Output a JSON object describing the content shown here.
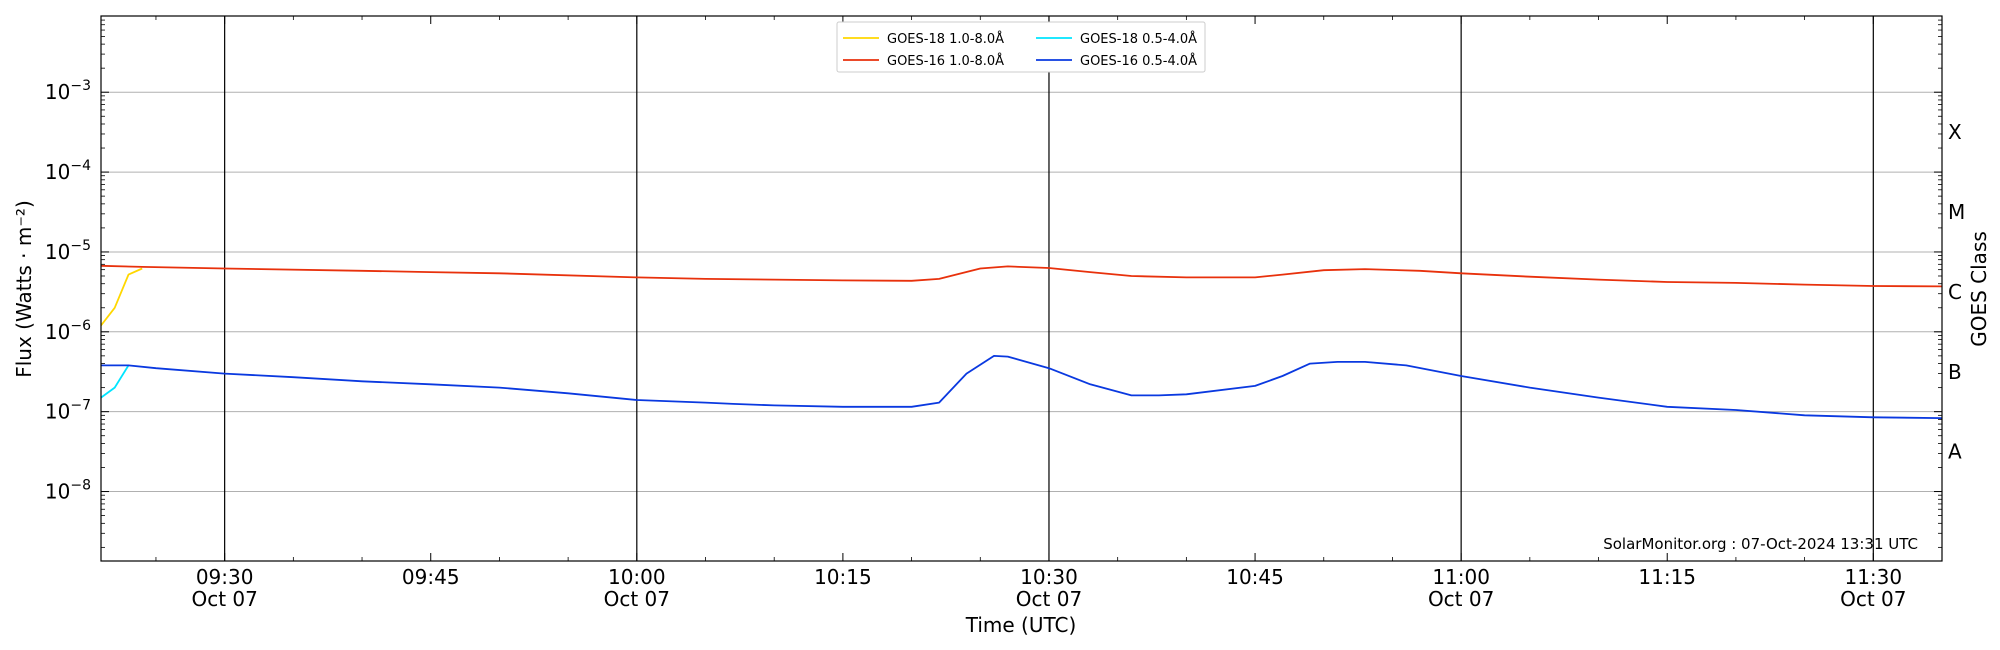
{
  "chart_data": {
    "type": "line",
    "xlabel": "Time (UTC)",
    "ylabel": "Flux (Watts · m⁻²)",
    "right_label": "GOES Class",
    "xlim": [
      "09:21",
      "11:35"
    ],
    "ylim": [
      1.35e-09,
      0.009
    ],
    "y_scale": "log",
    "x_ticks": [
      {
        "time": "09:30",
        "label": "09:30",
        "date": "Oct 07",
        "major": true
      },
      {
        "time": "09:45",
        "label": "09:45",
        "date": "",
        "major": false
      },
      {
        "time": "10:00",
        "label": "10:00",
        "date": "Oct 07",
        "major": true
      },
      {
        "time": "10:15",
        "label": "10:15",
        "date": "",
        "major": false
      },
      {
        "time": "10:30",
        "label": "10:30",
        "date": "Oct 07",
        "major": true
      },
      {
        "time": "10:45",
        "label": "10:45",
        "date": "",
        "major": false
      },
      {
        "time": "11:00",
        "label": "11:00",
        "date": "Oct 07",
        "major": true
      },
      {
        "time": "11:15",
        "label": "11:15",
        "date": "",
        "major": false
      },
      {
        "time": "11:30",
        "label": "11:30",
        "date": "Oct 07",
        "major": true
      }
    ],
    "y_ticks": [
      {
        "value": 1e-08,
        "base": "10",
        "exp": "−8"
      },
      {
        "value": 1e-07,
        "base": "10",
        "exp": "−7"
      },
      {
        "value": 1e-06,
        "base": "10",
        "exp": "−6"
      },
      {
        "value": 1e-05,
        "base": "10",
        "exp": "−5"
      },
      {
        "value": 0.0001,
        "base": "10",
        "exp": "−4"
      },
      {
        "value": 0.001,
        "base": "10",
        "exp": "−3"
      }
    ],
    "goes_classes": [
      {
        "label": "A",
        "value": 3.16e-08
      },
      {
        "label": "B",
        "value": 3.16e-07
      },
      {
        "label": "C",
        "value": 3.16e-06
      },
      {
        "label": "M",
        "value": 3.16e-05
      },
      {
        "label": "X",
        "value": 0.000316
      }
    ],
    "grid": true,
    "legend_position": "top-center",
    "annotation": "SolarMonitor.org : 07-Oct-2024 13:31 UTC",
    "series": [
      {
        "name": "GOES-18 1.0-8.0Å",
        "color": "#ffd700",
        "x": [
          "09:21",
          "09:22",
          "09:23",
          "09:24"
        ],
        "y": [
          1.2e-06,
          2e-06,
          5.2e-06,
          6.2e-06
        ]
      },
      {
        "name": "GOES-18 0.5-4.0Å",
        "color": "#00e5ff",
        "x": [
          "09:21",
          "09:22",
          "09:23"
        ],
        "y": [
          1.5e-07,
          2e-07,
          3.8e-07
        ]
      },
      {
        "name": "GOES-16 1.0-8.0Å",
        "color": "#e8310c",
        "x": [
          "09:21",
          "09:24",
          "09:30",
          "09:40",
          "09:45",
          "09:50",
          "10:00",
          "10:05",
          "10:10",
          "10:15",
          "10:20",
          "10:22",
          "10:25",
          "10:27",
          "10:30",
          "10:33",
          "10:36",
          "10:40",
          "10:45",
          "10:47",
          "10:50",
          "10:53",
          "10:57",
          "11:00",
          "11:05",
          "11:10",
          "11:15",
          "11:20",
          "11:25",
          "11:30",
          "11:35"
        ],
        "y": [
          6.7e-06,
          6.5e-06,
          6.2e-06,
          5.8e-06,
          5.6e-06,
          5.4e-06,
          4.8e-06,
          4.6e-06,
          4.5e-06,
          4.4e-06,
          4.35e-06,
          4.6e-06,
          6.2e-06,
          6.6e-06,
          6.3e-06,
          5.6e-06,
          5e-06,
          4.8e-06,
          4.8e-06,
          5.2e-06,
          5.9e-06,
          6.1e-06,
          5.8e-06,
          5.4e-06,
          4.9e-06,
          4.5e-06,
          4.2e-06,
          4.1e-06,
          3.9e-06,
          3.75e-06,
          3.7e-06
        ]
      },
      {
        "name": "GOES-16 0.5-4.0Å",
        "color": "#0a39e0",
        "x": [
          "09:21",
          "09:23",
          "09:25",
          "09:30",
          "09:35",
          "09:40",
          "09:45",
          "09:50",
          "09:55",
          "10:00",
          "10:05",
          "10:07",
          "10:10",
          "10:15",
          "10:20",
          "10:22",
          "10:24",
          "10:26",
          "10:27",
          "10:30",
          "10:33",
          "10:36",
          "10:38",
          "10:40",
          "10:45",
          "10:47",
          "10:49",
          "10:51",
          "10:53",
          "10:56",
          "11:00",
          "11:05",
          "11:10",
          "11:15",
          "11:20",
          "11:25",
          "11:30",
          "11:35"
        ],
        "y": [
          3.8e-07,
          3.8e-07,
          3.5e-07,
          3e-07,
          2.7e-07,
          2.4e-07,
          2.2e-07,
          2e-07,
          1.7e-07,
          1.4e-07,
          1.3e-07,
          1.25e-07,
          1.2e-07,
          1.15e-07,
          1.15e-07,
          1.3e-07,
          3e-07,
          5e-07,
          4.9e-07,
          3.5e-07,
          2.2e-07,
          1.6e-07,
          1.6e-07,
          1.65e-07,
          2.1e-07,
          2.8e-07,
          4e-07,
          4.2e-07,
          4.2e-07,
          3.8e-07,
          2.8e-07,
          2e-07,
          1.5e-07,
          1.15e-07,
          1.05e-07,
          9e-08,
          8.5e-08,
          8.3e-08
        ]
      }
    ]
  }
}
